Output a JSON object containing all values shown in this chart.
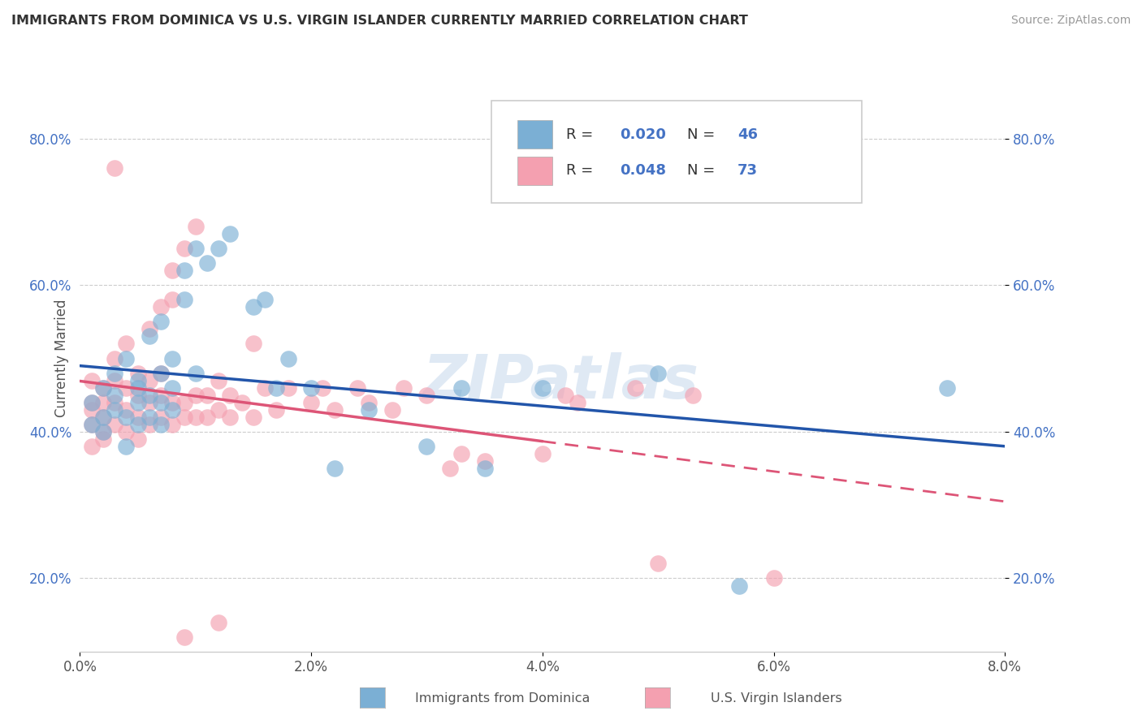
{
  "title": "IMMIGRANTS FROM DOMINICA VS U.S. VIRGIN ISLANDER CURRENTLY MARRIED CORRELATION CHART",
  "source": "Source: ZipAtlas.com",
  "ylabel": "Currently Married",
  "xlabel_blue": "Immigrants from Dominica",
  "xlabel_pink": "U.S. Virgin Islanders",
  "R_blue": 0.02,
  "N_blue": 46,
  "R_pink": 0.048,
  "N_pink": 73,
  "xlim": [
    0.0,
    0.08
  ],
  "ylim": [
    0.1,
    0.9
  ],
  "xticks": [
    0.0,
    0.02,
    0.04,
    0.06,
    0.08
  ],
  "xtick_labels": [
    "0.0%",
    "2.0%",
    "4.0%",
    "6.0%",
    "8.0%"
  ],
  "yticks": [
    0.2,
    0.4,
    0.6,
    0.8
  ],
  "ytick_labels": [
    "20.0%",
    "40.0%",
    "60.0%",
    "80.0%"
  ],
  "grid_color": "#cccccc",
  "blue_color": "#7bafd4",
  "pink_color": "#f4a0b0",
  "blue_line_color": "#2255aa",
  "pink_line_color": "#dd5577",
  "watermark": "ZIPatlas",
  "blue_points_x": [
    0.001,
    0.001,
    0.002,
    0.002,
    0.002,
    0.003,
    0.003,
    0.003,
    0.004,
    0.004,
    0.004,
    0.005,
    0.005,
    0.005,
    0.005,
    0.006,
    0.006,
    0.006,
    0.007,
    0.007,
    0.007,
    0.007,
    0.008,
    0.008,
    0.008,
    0.009,
    0.009,
    0.01,
    0.01,
    0.011,
    0.012,
    0.013,
    0.015,
    0.016,
    0.017,
    0.018,
    0.02,
    0.022,
    0.025,
    0.03,
    0.033,
    0.035,
    0.04,
    0.05,
    0.057,
    0.075
  ],
  "blue_points_y": [
    0.44,
    0.41,
    0.46,
    0.42,
    0.4,
    0.48,
    0.45,
    0.43,
    0.5,
    0.42,
    0.38,
    0.47,
    0.44,
    0.41,
    0.46,
    0.53,
    0.45,
    0.42,
    0.55,
    0.48,
    0.44,
    0.41,
    0.5,
    0.46,
    0.43,
    0.62,
    0.58,
    0.65,
    0.48,
    0.63,
    0.65,
    0.67,
    0.57,
    0.58,
    0.46,
    0.5,
    0.46,
    0.35,
    0.43,
    0.38,
    0.46,
    0.35,
    0.46,
    0.48,
    0.19,
    0.46
  ],
  "pink_points_x": [
    0.001,
    0.001,
    0.001,
    0.001,
    0.001,
    0.002,
    0.002,
    0.002,
    0.002,
    0.002,
    0.003,
    0.003,
    0.003,
    0.003,
    0.004,
    0.004,
    0.004,
    0.004,
    0.005,
    0.005,
    0.005,
    0.005,
    0.006,
    0.006,
    0.006,
    0.006,
    0.007,
    0.007,
    0.007,
    0.007,
    0.008,
    0.008,
    0.008,
    0.008,
    0.009,
    0.009,
    0.009,
    0.01,
    0.01,
    0.01,
    0.011,
    0.011,
    0.012,
    0.012,
    0.013,
    0.013,
    0.014,
    0.015,
    0.015,
    0.016,
    0.017,
    0.018,
    0.02,
    0.021,
    0.022,
    0.024,
    0.025,
    0.027,
    0.028,
    0.03,
    0.032,
    0.033,
    0.035,
    0.04,
    0.042,
    0.043,
    0.048,
    0.05,
    0.053,
    0.06,
    0.003,
    0.009,
    0.012
  ],
  "pink_points_y": [
    0.44,
    0.41,
    0.38,
    0.47,
    0.43,
    0.46,
    0.4,
    0.44,
    0.42,
    0.39,
    0.5,
    0.44,
    0.41,
    0.47,
    0.52,
    0.43,
    0.4,
    0.46,
    0.48,
    0.42,
    0.45,
    0.39,
    0.54,
    0.44,
    0.41,
    0.47,
    0.57,
    0.45,
    0.42,
    0.48,
    0.62,
    0.44,
    0.58,
    0.41,
    0.65,
    0.44,
    0.42,
    0.68,
    0.45,
    0.42,
    0.45,
    0.42,
    0.47,
    0.43,
    0.45,
    0.42,
    0.44,
    0.52,
    0.42,
    0.46,
    0.43,
    0.46,
    0.44,
    0.46,
    0.43,
    0.46,
    0.44,
    0.43,
    0.46,
    0.45,
    0.35,
    0.37,
    0.36,
    0.37,
    0.45,
    0.44,
    0.46,
    0.22,
    0.45,
    0.2,
    0.76,
    0.12,
    0.14
  ]
}
